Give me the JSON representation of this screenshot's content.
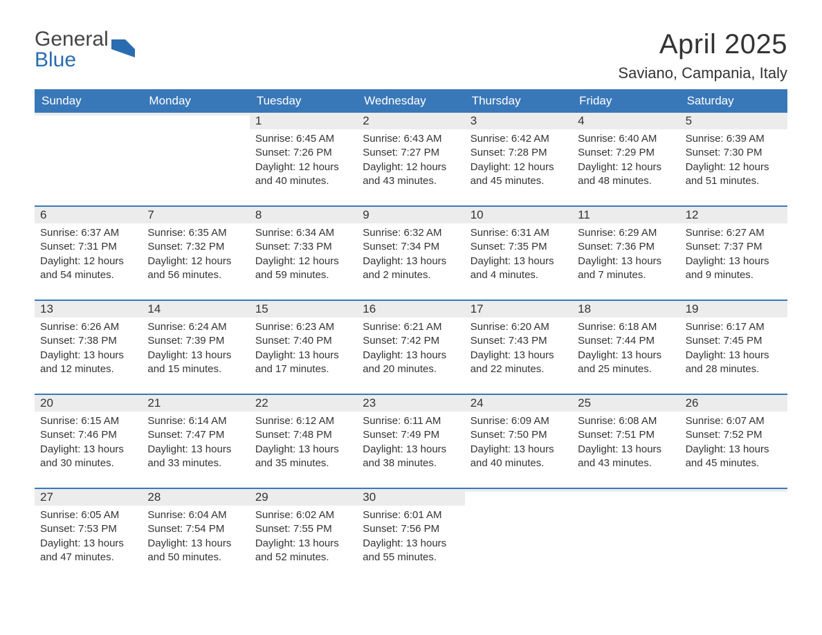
{
  "logo": {
    "word1": "General",
    "word2": "Blue",
    "color1": "#444444",
    "color2": "#2a6cb0",
    "mark_color": "#2a6cb0"
  },
  "title": "April 2025",
  "location": "Saviano, Campania, Italy",
  "header_bg": "#3978b8",
  "header_fg": "#ffffff",
  "daynum_bg": "#ececec",
  "week_border": "#3978b8",
  "text_color": "#333333",
  "weekdays": [
    "Sunday",
    "Monday",
    "Tuesday",
    "Wednesday",
    "Thursday",
    "Friday",
    "Saturday"
  ],
  "weeks": [
    [
      null,
      null,
      {
        "d": "1",
        "sr": "Sunrise: 6:45 AM",
        "ss": "Sunset: 7:26 PM",
        "dl1": "Daylight: 12 hours",
        "dl2": "and 40 minutes."
      },
      {
        "d": "2",
        "sr": "Sunrise: 6:43 AM",
        "ss": "Sunset: 7:27 PM",
        "dl1": "Daylight: 12 hours",
        "dl2": "and 43 minutes."
      },
      {
        "d": "3",
        "sr": "Sunrise: 6:42 AM",
        "ss": "Sunset: 7:28 PM",
        "dl1": "Daylight: 12 hours",
        "dl2": "and 45 minutes."
      },
      {
        "d": "4",
        "sr": "Sunrise: 6:40 AM",
        "ss": "Sunset: 7:29 PM",
        "dl1": "Daylight: 12 hours",
        "dl2": "and 48 minutes."
      },
      {
        "d": "5",
        "sr": "Sunrise: 6:39 AM",
        "ss": "Sunset: 7:30 PM",
        "dl1": "Daylight: 12 hours",
        "dl2": "and 51 minutes."
      }
    ],
    [
      {
        "d": "6",
        "sr": "Sunrise: 6:37 AM",
        "ss": "Sunset: 7:31 PM",
        "dl1": "Daylight: 12 hours",
        "dl2": "and 54 minutes."
      },
      {
        "d": "7",
        "sr": "Sunrise: 6:35 AM",
        "ss": "Sunset: 7:32 PM",
        "dl1": "Daylight: 12 hours",
        "dl2": "and 56 minutes."
      },
      {
        "d": "8",
        "sr": "Sunrise: 6:34 AM",
        "ss": "Sunset: 7:33 PM",
        "dl1": "Daylight: 12 hours",
        "dl2": "and 59 minutes."
      },
      {
        "d": "9",
        "sr": "Sunrise: 6:32 AM",
        "ss": "Sunset: 7:34 PM",
        "dl1": "Daylight: 13 hours",
        "dl2": "and 2 minutes."
      },
      {
        "d": "10",
        "sr": "Sunrise: 6:31 AM",
        "ss": "Sunset: 7:35 PM",
        "dl1": "Daylight: 13 hours",
        "dl2": "and 4 minutes."
      },
      {
        "d": "11",
        "sr": "Sunrise: 6:29 AM",
        "ss": "Sunset: 7:36 PM",
        "dl1": "Daylight: 13 hours",
        "dl2": "and 7 minutes."
      },
      {
        "d": "12",
        "sr": "Sunrise: 6:27 AM",
        "ss": "Sunset: 7:37 PM",
        "dl1": "Daylight: 13 hours",
        "dl2": "and 9 minutes."
      }
    ],
    [
      {
        "d": "13",
        "sr": "Sunrise: 6:26 AM",
        "ss": "Sunset: 7:38 PM",
        "dl1": "Daylight: 13 hours",
        "dl2": "and 12 minutes."
      },
      {
        "d": "14",
        "sr": "Sunrise: 6:24 AM",
        "ss": "Sunset: 7:39 PM",
        "dl1": "Daylight: 13 hours",
        "dl2": "and 15 minutes."
      },
      {
        "d": "15",
        "sr": "Sunrise: 6:23 AM",
        "ss": "Sunset: 7:40 PM",
        "dl1": "Daylight: 13 hours",
        "dl2": "and 17 minutes."
      },
      {
        "d": "16",
        "sr": "Sunrise: 6:21 AM",
        "ss": "Sunset: 7:42 PM",
        "dl1": "Daylight: 13 hours",
        "dl2": "and 20 minutes."
      },
      {
        "d": "17",
        "sr": "Sunrise: 6:20 AM",
        "ss": "Sunset: 7:43 PM",
        "dl1": "Daylight: 13 hours",
        "dl2": "and 22 minutes."
      },
      {
        "d": "18",
        "sr": "Sunrise: 6:18 AM",
        "ss": "Sunset: 7:44 PM",
        "dl1": "Daylight: 13 hours",
        "dl2": "and 25 minutes."
      },
      {
        "d": "19",
        "sr": "Sunrise: 6:17 AM",
        "ss": "Sunset: 7:45 PM",
        "dl1": "Daylight: 13 hours",
        "dl2": "and 28 minutes."
      }
    ],
    [
      {
        "d": "20",
        "sr": "Sunrise: 6:15 AM",
        "ss": "Sunset: 7:46 PM",
        "dl1": "Daylight: 13 hours",
        "dl2": "and 30 minutes."
      },
      {
        "d": "21",
        "sr": "Sunrise: 6:14 AM",
        "ss": "Sunset: 7:47 PM",
        "dl1": "Daylight: 13 hours",
        "dl2": "and 33 minutes."
      },
      {
        "d": "22",
        "sr": "Sunrise: 6:12 AM",
        "ss": "Sunset: 7:48 PM",
        "dl1": "Daylight: 13 hours",
        "dl2": "and 35 minutes."
      },
      {
        "d": "23",
        "sr": "Sunrise: 6:11 AM",
        "ss": "Sunset: 7:49 PM",
        "dl1": "Daylight: 13 hours",
        "dl2": "and 38 minutes."
      },
      {
        "d": "24",
        "sr": "Sunrise: 6:09 AM",
        "ss": "Sunset: 7:50 PM",
        "dl1": "Daylight: 13 hours",
        "dl2": "and 40 minutes."
      },
      {
        "d": "25",
        "sr": "Sunrise: 6:08 AM",
        "ss": "Sunset: 7:51 PM",
        "dl1": "Daylight: 13 hours",
        "dl2": "and 43 minutes."
      },
      {
        "d": "26",
        "sr": "Sunrise: 6:07 AM",
        "ss": "Sunset: 7:52 PM",
        "dl1": "Daylight: 13 hours",
        "dl2": "and 45 minutes."
      }
    ],
    [
      {
        "d": "27",
        "sr": "Sunrise: 6:05 AM",
        "ss": "Sunset: 7:53 PM",
        "dl1": "Daylight: 13 hours",
        "dl2": "and 47 minutes."
      },
      {
        "d": "28",
        "sr": "Sunrise: 6:04 AM",
        "ss": "Sunset: 7:54 PM",
        "dl1": "Daylight: 13 hours",
        "dl2": "and 50 minutes."
      },
      {
        "d": "29",
        "sr": "Sunrise: 6:02 AM",
        "ss": "Sunset: 7:55 PM",
        "dl1": "Daylight: 13 hours",
        "dl2": "and 52 minutes."
      },
      {
        "d": "30",
        "sr": "Sunrise: 6:01 AM",
        "ss": "Sunset: 7:56 PM",
        "dl1": "Daylight: 13 hours",
        "dl2": "and 55 minutes."
      },
      null,
      null,
      null
    ]
  ]
}
